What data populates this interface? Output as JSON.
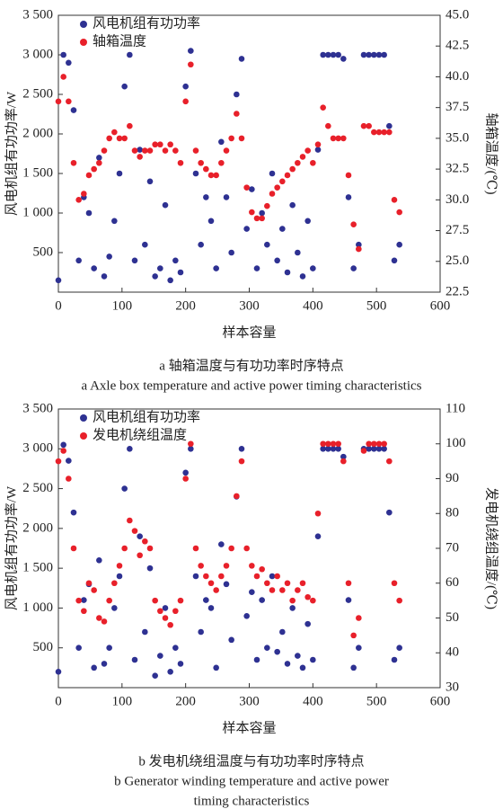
{
  "chart_data": [
    {
      "type": "scatter",
      "xlabel": "样本容量",
      "ylabel": "风电机组有功功率/W",
      "y2label": "轴箱温度/(℃)",
      "caption_zh": [
        "a  轴箱温度与有功功率时序特点"
      ],
      "caption_en": [
        "a  Axle box temperature and active power timing characteristics"
      ],
      "legend": "upper left",
      "grid": false,
      "xlim": [
        0,
        600
      ],
      "xticks": [
        0,
        100,
        200,
        300,
        400,
        500,
        600
      ],
      "ylim": [
        0,
        3500
      ],
      "yticks": [
        500,
        {
          "value": 1000,
          "label": "1 000"
        },
        {
          "value": 1500,
          "label": "1 500"
        },
        {
          "value": 2000,
          "label": "2 000"
        },
        {
          "value": 2500,
          "label": "2 500"
        },
        {
          "value": 3000,
          "label": "3 000"
        },
        {
          "value": 3500,
          "label": "3 500"
        }
      ],
      "y2lim": [
        22.5,
        45
      ],
      "y2ticks": [
        22.5,
        {
          "value": 25,
          "label": "25.0"
        },
        27.5,
        {
          "value": 30,
          "label": "30.0"
        },
        32.5,
        {
          "value": 35,
          "label": "35.0"
        },
        37.5,
        {
          "value": 40,
          "label": "40.0"
        },
        42.5,
        {
          "value": 45,
          "label": "45.0"
        }
      ],
      "x": [
        0,
        8,
        16,
        24,
        32,
        40,
        48,
        56,
        64,
        72,
        80,
        88,
        96,
        104,
        112,
        120,
        128,
        136,
        144,
        152,
        160,
        168,
        176,
        184,
        192,
        200,
        208,
        216,
        224,
        232,
        240,
        248,
        256,
        264,
        272,
        280,
        288,
        296,
        304,
        312,
        320,
        328,
        336,
        344,
        352,
        360,
        368,
        376,
        384,
        392,
        400,
        408,
        416,
        424,
        432,
        440,
        448,
        456,
        464,
        472,
        480,
        488,
        496,
        504,
        512,
        520,
        528,
        536
      ],
      "series": [
        {
          "name": "风电机组有功功率",
          "color": "#2e3192",
          "axis": "y",
          "values": [
            150,
            3000,
            2900,
            2300,
            400,
            1200,
            1000,
            300,
            1700,
            200,
            450,
            900,
            1500,
            2600,
            3000,
            400,
            1800,
            600,
            1400,
            200,
            300,
            1100,
            150,
            400,
            250,
            2600,
            3050,
            1500,
            600,
            1200,
            900,
            300,
            1900,
            1200,
            500,
            2500,
            2950,
            800,
            1300,
            300,
            1000,
            600,
            1500,
            400,
            800,
            250,
            1100,
            500,
            200,
            900,
            300,
            1800,
            3000,
            3000,
            3000,
            3000,
            2950,
            1200,
            300,
            600,
            3000,
            3000,
            3000,
            3000,
            3000,
            2100,
            400,
            600
          ]
        },
        {
          "name": "轴箱温度",
          "color": "#e8202a",
          "axis": "y2",
          "values": [
            38,
            40,
            38,
            33,
            30,
            30.5,
            32,
            32.5,
            33,
            34,
            35,
            35.5,
            35,
            35,
            36,
            34,
            33.5,
            34,
            34,
            34.5,
            34.5,
            34,
            34.5,
            34,
            33,
            38,
            41,
            34,
            33,
            32.5,
            32,
            32,
            33,
            34,
            35,
            37,
            35,
            31,
            29,
            28.5,
            28.5,
            29.5,
            30.5,
            31,
            31.5,
            32,
            32.5,
            33,
            33.5,
            34,
            33,
            34.5,
            37.5,
            36,
            35,
            35,
            35,
            32,
            28,
            26,
            36,
            36,
            35.5,
            35.5,
            35.5,
            35.5,
            30,
            29
          ]
        }
      ]
    },
    {
      "type": "scatter",
      "xlabel": "样本容量",
      "ylabel": "风电机组有功功率/W",
      "y2label": "发电机绕组温度/(℃)",
      "caption_zh": [
        "b  发电机绕组温度与有功功率时序特点"
      ],
      "caption_en": [
        "b  Generator winding temperature and active power",
        "timing characteristics"
      ],
      "legend": "upper left",
      "grid": false,
      "xlim": [
        0,
        600
      ],
      "xticks": [
        0,
        100,
        200,
        300,
        400,
        500,
        600
      ],
      "ylim": [
        0,
        3500
      ],
      "yticks": [
        500,
        {
          "value": 1000,
          "label": "1 000"
        },
        {
          "value": 1500,
          "label": "1 500"
        },
        {
          "value": 2000,
          "label": "2 000"
        },
        {
          "value": 2500,
          "label": "2 500"
        },
        {
          "value": 3000,
          "label": "3 000"
        },
        {
          "value": 3500,
          "label": "3 500"
        }
      ],
      "y2lim": [
        30,
        110
      ],
      "y2ticks": [
        30,
        40,
        50,
        60,
        70,
        80,
        90,
        100,
        110
      ],
      "x": [
        0,
        8,
        16,
        24,
        32,
        40,
        48,
        56,
        64,
        72,
        80,
        88,
        96,
        104,
        112,
        120,
        128,
        136,
        144,
        152,
        160,
        168,
        176,
        184,
        192,
        200,
        208,
        216,
        224,
        232,
        240,
        248,
        256,
        264,
        272,
        280,
        288,
        296,
        304,
        312,
        320,
        328,
        336,
        344,
        352,
        360,
        368,
        376,
        384,
        392,
        400,
        408,
        416,
        424,
        432,
        440,
        448,
        456,
        464,
        472,
        480,
        488,
        496,
        504,
        512,
        520,
        528,
        536
      ],
      "series": [
        {
          "name": "风电机组有功功率",
          "color": "#2e3192",
          "axis": "y",
          "values": [
            200,
            3050,
            2850,
            2200,
            500,
            1100,
            1300,
            250,
            1600,
            300,
            500,
            1000,
            1400,
            2500,
            3000,
            350,
            1900,
            700,
            1500,
            150,
            400,
            1000,
            200,
            500,
            300,
            2700,
            3000,
            1400,
            700,
            1100,
            1000,
            250,
            1800,
            1300,
            600,
            2400,
            3000,
            900,
            1200,
            350,
            1100,
            500,
            1400,
            450,
            700,
            300,
            1000,
            400,
            250,
            800,
            350,
            1900,
            3000,
            3000,
            3000,
            3000,
            2900,
            1100,
            250,
            500,
            3000,
            3000,
            3000,
            3000,
            3000,
            2200,
            350,
            500
          ]
        },
        {
          "name": "发电机绕组温度",
          "color": "#e8202a",
          "axis": "y2",
          "values": [
            95,
            98,
            90,
            70,
            55,
            52,
            60,
            58,
            50,
            49,
            55,
            60,
            65,
            70,
            78,
            75,
            68,
            72,
            70,
            55,
            52,
            50,
            48,
            52,
            55,
            90,
            100,
            70,
            65,
            62,
            60,
            58,
            62,
            65,
            70,
            85,
            95,
            70,
            65,
            62,
            64,
            60,
            58,
            62,
            58,
            60,
            55,
            58,
            60,
            56,
            55,
            80,
            100,
            100,
            100,
            100,
            95,
            60,
            45,
            50,
            98,
            100,
            100,
            100,
            100,
            95,
            60,
            55
          ]
        }
      ]
    }
  ]
}
